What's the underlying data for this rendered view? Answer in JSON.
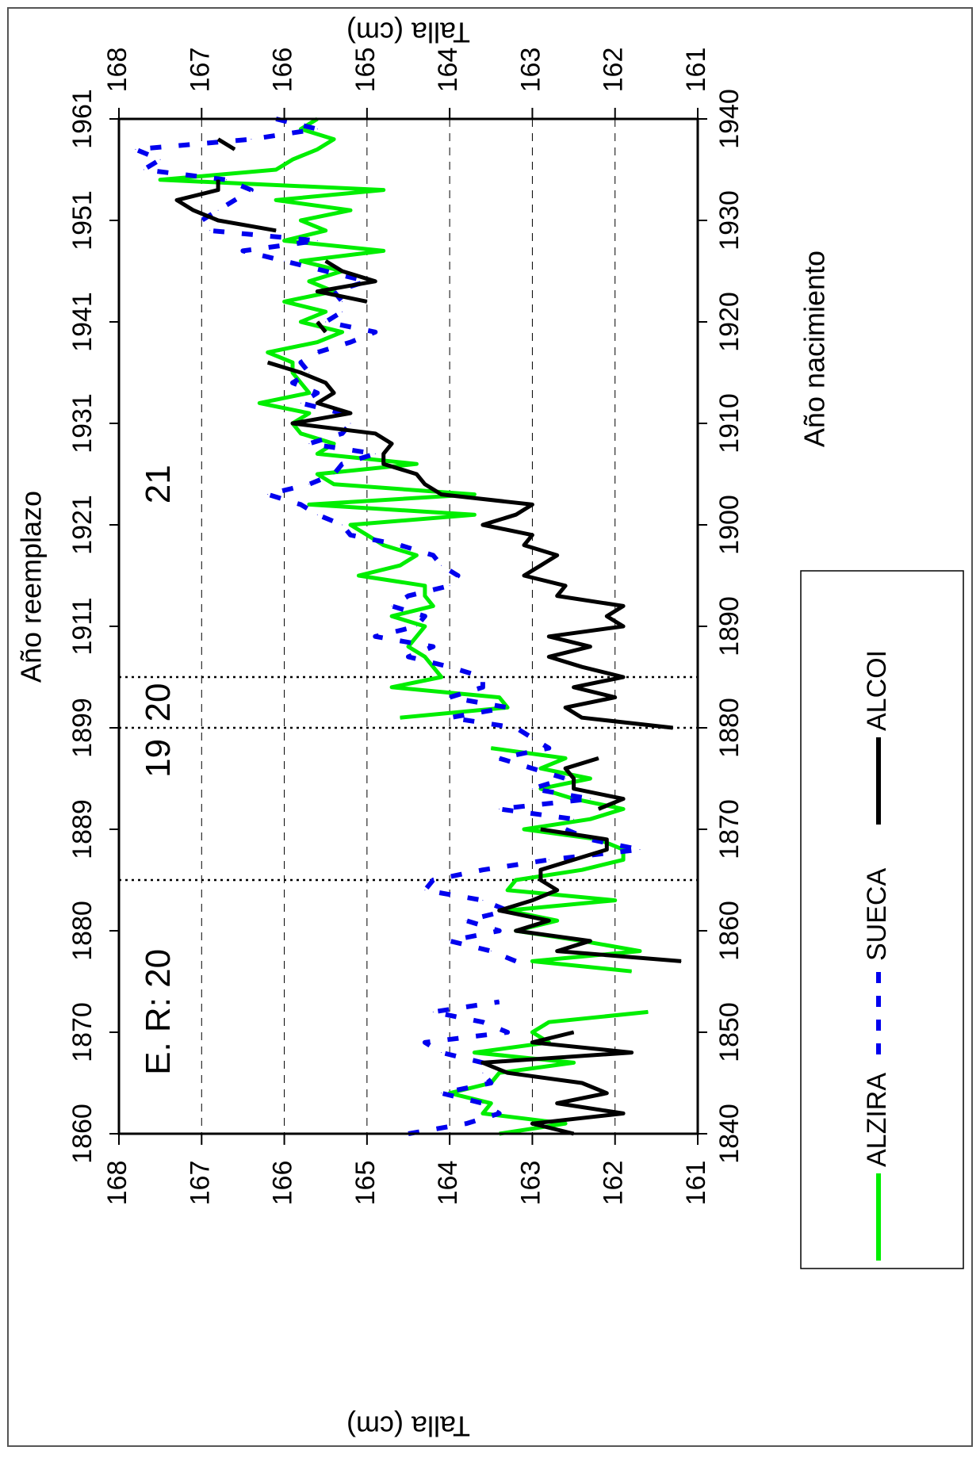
{
  "chart_data": {
    "type": "line",
    "title": "",
    "top_axis_label": "Año reemplazo",
    "bottom_axis_label": "Año nacimiento",
    "left_axis_label": "Talla (cm)",
    "right_axis_label": "Talla (cm)",
    "top_ticks": [
      "1860",
      "1870",
      "1880",
      "1889",
      "1899",
      "1911",
      "1921",
      "1931",
      "1941",
      "1951",
      "1961"
    ],
    "bottom_ticks": [
      "1840",
      "1850",
      "1860",
      "1870",
      "1880",
      "1890",
      "1900",
      "1910",
      "1920",
      "1930",
      "1940"
    ],
    "left_ticks": [
      "168",
      "167",
      "166",
      "165",
      "164",
      "163",
      "162",
      "161"
    ],
    "right_ticks": [
      "168",
      "167",
      "166",
      "165",
      "164",
      "163",
      "162",
      "161"
    ],
    "xlim": [
      1840,
      1940
    ],
    "ylim": [
      161,
      168
    ],
    "x_unit": "Año nacimiento",
    "grid": true,
    "region_separators": [
      1865,
      1880,
      1885
    ],
    "region_labels": [
      {
        "text": "E. R: 20",
        "x": 1852,
        "y": 167.5
      },
      {
        "text": "19",
        "x": 1877,
        "y": 167.5
      },
      {
        "text": "20",
        "x": 1882.5,
        "y": 167.5
      },
      {
        "text": "21",
        "x": 1904,
        "y": 167.5
      }
    ],
    "legend_position": "bottom",
    "series": [
      {
        "name": "ALZIRA",
        "color": "#00ee00",
        "style": "solid",
        "points": [
          [
            1840,
            163.4
          ],
          [
            1841,
            162.6
          ],
          [
            1842,
            163.6
          ],
          [
            1843,
            163.5
          ],
          [
            1844,
            164.0
          ],
          [
            1845,
            163.5
          ],
          [
            1846,
            163.4
          ],
          [
            1847,
            162.5
          ],
          [
            1848,
            163.7
          ],
          [
            1849,
            162.8
          ],
          [
            1850,
            163.0
          ],
          [
            1851,
            162.8
          ],
          [
            1852,
            161.6
          ],
          [
            1856,
            161.8
          ],
          [
            1857,
            163.0
          ],
          [
            1858,
            161.7
          ],
          [
            1859,
            162.4
          ],
          [
            1860,
            163.2
          ],
          [
            1861,
            162.7
          ],
          [
            1862,
            163.3
          ],
          [
            1863,
            162.0
          ],
          [
            1864,
            163.3
          ],
          [
            1865,
            163.2
          ],
          [
            1866,
            162.4
          ],
          [
            1867,
            161.9
          ],
          [
            1868,
            161.9
          ],
          [
            1869,
            162.2
          ],
          [
            1870,
            163.1
          ],
          [
            1871,
            162.3
          ],
          [
            1872,
            161.9
          ],
          [
            1873,
            162.5
          ],
          [
            1874,
            162.9
          ],
          [
            1875,
            162.3
          ],
          [
            1876,
            162.9
          ],
          [
            1877,
            162.6
          ],
          [
            1878,
            163.5
          ],
          [
            1881,
            164.6
          ],
          [
            1882,
            163.3
          ],
          [
            1883,
            163.4
          ],
          [
            1884,
            164.7
          ],
          [
            1885,
            164.1
          ],
          [
            1886,
            164.2
          ],
          [
            1887,
            164.3
          ],
          [
            1888,
            164.5
          ],
          [
            1889,
            164.4
          ],
          [
            1890,
            164.3
          ],
          [
            1891,
            164.7
          ],
          [
            1892,
            164.2
          ],
          [
            1893,
            164.3
          ],
          [
            1894,
            164.3
          ],
          [
            1895,
            165.1
          ],
          [
            1896,
            164.6
          ],
          [
            1897,
            164.4
          ],
          [
            1898,
            164.8
          ],
          [
            1899,
            165.0
          ],
          [
            1900,
            165.2
          ],
          [
            1901,
            163.7
          ],
          [
            1902,
            165.7
          ],
          [
            1903,
            163.7
          ],
          [
            1904,
            165.4
          ],
          [
            1905,
            165.6
          ],
          [
            1906,
            164.4
          ],
          [
            1907,
            165.6
          ],
          [
            1908,
            165.4
          ],
          [
            1909,
            165.8
          ],
          [
            1910,
            165.9
          ],
          [
            1911,
            165.7
          ],
          [
            1912,
            166.3
          ],
          [
            1913,
            165.7
          ],
          [
            1914,
            165.8
          ],
          [
            1915,
            165.9
          ],
          [
            1916,
            165.9
          ],
          [
            1917,
            166.2
          ],
          [
            1918,
            165.6
          ],
          [
            1919,
            165.3
          ],
          [
            1920,
            165.8
          ],
          [
            1921,
            165.5
          ],
          [
            1922,
            166.0
          ],
          [
            1923,
            165.4
          ],
          [
            1924,
            165.7
          ],
          [
            1925,
            165.3
          ],
          [
            1926,
            165.8
          ],
          [
            1927,
            164.8
          ],
          [
            1928,
            166.0
          ],
          [
            1929,
            165.5
          ],
          [
            1930,
            165.8
          ],
          [
            1931,
            165.2
          ],
          [
            1932,
            166.1
          ],
          [
            1933,
            164.8
          ],
          [
            1934,
            167.5
          ],
          [
            1935,
            166.1
          ],
          [
            1936,
            165.9
          ],
          [
            1937,
            165.6
          ],
          [
            1938,
            165.4
          ],
          [
            1939,
            165.8
          ],
          [
            1940,
            165.6
          ]
        ]
      },
      {
        "name": "SUECA",
        "color": "#0000ee",
        "style": "dashed",
        "points": [
          [
            1840,
            164.5
          ],
          [
            1841,
            163.8
          ],
          [
            1842,
            163.4
          ],
          [
            1843,
            163.6
          ],
          [
            1844,
            164.1
          ],
          [
            1845,
            163.5
          ],
          [
            1846,
            163.6
          ],
          [
            1847,
            163.6
          ],
          [
            1848,
            164.1
          ],
          [
            1849,
            164.3
          ],
          [
            1850,
            163.3
          ],
          [
            1851,
            163.6
          ],
          [
            1852,
            164.2
          ],
          [
            1853,
            163.4
          ],
          [
            1857,
            163.2
          ],
          [
            1858,
            163.5
          ],
          [
            1859,
            164.0
          ],
          [
            1860,
            163.4
          ],
          [
            1861,
            163.8
          ],
          [
            1862,
            163.3
          ],
          [
            1863,
            163.6
          ],
          [
            1864,
            164.3
          ],
          [
            1865,
            164.2
          ],
          [
            1866,
            163.6
          ],
          [
            1867,
            162.8
          ],
          [
            1868,
            161.7
          ],
          [
            1869,
            162.3
          ],
          [
            1870,
            162.6
          ],
          [
            1871,
            162.5
          ],
          [
            1872,
            163.4
          ],
          [
            1873,
            162.3
          ],
          [
            1874,
            163.0
          ],
          [
            1875,
            162.6
          ],
          [
            1876,
            163.0
          ],
          [
            1877,
            163.4
          ],
          [
            1878,
            162.8
          ],
          [
            1879,
            163.0
          ],
          [
            1880,
            163.2
          ],
          [
            1881,
            164.0
          ],
          [
            1882,
            163.3
          ],
          [
            1883,
            164.0
          ],
          [
            1884,
            163.6
          ],
          [
            1885,
            163.6
          ],
          [
            1886,
            164.0
          ],
          [
            1887,
            164.5
          ],
          [
            1888,
            164.2
          ],
          [
            1889,
            164.9
          ],
          [
            1890,
            164.4
          ],
          [
            1891,
            164.3
          ],
          [
            1892,
            164.7
          ],
          [
            1893,
            164.5
          ],
          [
            1894,
            164.0
          ],
          [
            1895,
            163.9
          ],
          [
            1896,
            164.1
          ],
          [
            1897,
            164.2
          ],
          [
            1898,
            164.6
          ],
          [
            1899,
            165.2
          ],
          [
            1900,
            165.3
          ],
          [
            1901,
            165.6
          ],
          [
            1902,
            165.8
          ],
          [
            1903,
            166.2
          ],
          [
            1904,
            165.7
          ],
          [
            1905,
            165.4
          ],
          [
            1906,
            165.3
          ],
          [
            1907,
            164.9
          ],
          [
            1908,
            165.7
          ],
          [
            1909,
            165.3
          ],
          [
            1910,
            165.2
          ],
          [
            1911,
            165.3
          ],
          [
            1912,
            165.8
          ],
          [
            1913,
            165.6
          ],
          [
            1914,
            165.9
          ],
          [
            1915,
            165.7
          ],
          [
            1916,
            165.8
          ],
          [
            1917,
            165.6
          ],
          [
            1918,
            165.2
          ],
          [
            1919,
            164.9
          ],
          [
            1920,
            165.5
          ],
          [
            1921,
            165.3
          ],
          [
            1922,
            165.3
          ],
          [
            1923,
            165.4
          ],
          [
            1924,
            165.0
          ],
          [
            1925,
            165.5
          ],
          [
            1926,
            166.0
          ],
          [
            1927,
            166.5
          ],
          [
            1928,
            165.6
          ],
          [
            1929,
            166.9
          ],
          [
            1930,
            167.0
          ],
          [
            1931,
            166.8
          ],
          [
            1932,
            166.6
          ],
          [
            1933,
            166.4
          ],
          [
            1934,
            166.7
          ],
          [
            1935,
            167.7
          ],
          [
            1936,
            167.5
          ],
          [
            1937,
            167.8
          ],
          [
            1938,
            166.4
          ],
          [
            1939,
            165.6
          ],
          [
            1940,
            166.1
          ]
        ]
      },
      {
        "name": "ALCOI",
        "color": "#000000",
        "style": "solid",
        "points": [
          [
            1840,
            162.5
          ],
          [
            1841,
            163.0
          ],
          [
            1842,
            161.9
          ],
          [
            1843,
            162.7
          ],
          [
            1844,
            162.1
          ],
          [
            1845,
            162.4
          ],
          [
            1846,
            163.3
          ],
          [
            1847,
            163.6
          ],
          [
            1848,
            161.8
          ],
          [
            1849,
            163.0
          ],
          [
            1850,
            162.5
          ],
          [
            1857,
            161.2
          ],
          [
            1858,
            162.7
          ],
          [
            1859,
            162.3
          ],
          [
            1860,
            163.2
          ],
          [
            1861,
            162.8
          ],
          [
            1862,
            163.4
          ],
          [
            1863,
            163.0
          ],
          [
            1864,
            162.7
          ],
          [
            1865,
            162.9
          ],
          [
            1866,
            162.9
          ],
          [
            1867,
            162.5
          ],
          [
            1868,
            162.1
          ],
          [
            1869,
            162.1
          ],
          [
            1870,
            162.9
          ],
          [
            1872,
            162.2
          ],
          [
            1873,
            161.9
          ],
          [
            1874,
            162.5
          ],
          [
            1875,
            162.5
          ],
          [
            1876,
            162.6
          ],
          [
            1877,
            162.2
          ],
          [
            1880,
            161.3
          ],
          [
            1881,
            162.4
          ],
          [
            1882,
            162.6
          ],
          [
            1883,
            162.0
          ],
          [
            1884,
            162.5
          ],
          [
            1885,
            161.9
          ],
          [
            1886,
            162.4
          ],
          [
            1887,
            162.8
          ],
          [
            1888,
            162.3
          ],
          [
            1889,
            162.8
          ],
          [
            1890,
            161.9
          ],
          [
            1891,
            162.1
          ],
          [
            1892,
            161.9
          ],
          [
            1893,
            162.7
          ],
          [
            1894,
            162.6
          ],
          [
            1895,
            163.1
          ],
          [
            1896,
            162.9
          ],
          [
            1897,
            162.7
          ],
          [
            1898,
            163.1
          ],
          [
            1899,
            163.0
          ],
          [
            1900,
            163.6
          ],
          [
            1901,
            163.2
          ],
          [
            1902,
            163.0
          ],
          [
            1903,
            164.1
          ],
          [
            1904,
            164.3
          ],
          [
            1905,
            164.4
          ],
          [
            1906,
            164.8
          ],
          [
            1907,
            164.8
          ],
          [
            1908,
            164.7
          ],
          [
            1909,
            164.9
          ],
          [
            1910,
            165.9
          ],
          [
            1911,
            165.2
          ],
          [
            1912,
            165.6
          ],
          [
            1913,
            165.4
          ],
          [
            1914,
            165.5
          ],
          [
            1915,
            165.8
          ],
          [
            1916,
            166.2
          ],
          [
            1919,
            165.5
          ],
          [
            1920,
            165.6
          ],
          [
            1922,
            165.0
          ],
          [
            1923,
            165.6
          ],
          [
            1924,
            164.9
          ],
          [
            1925,
            165.3
          ],
          [
            1926,
            165.5
          ],
          [
            1929,
            166.1
          ],
          [
            1930,
            166.8
          ],
          [
            1931,
            167.1
          ],
          [
            1932,
            167.3
          ],
          [
            1933,
            166.8
          ],
          [
            1934,
            166.8
          ],
          [
            1937,
            166.6
          ],
          [
            1938,
            166.8
          ]
        ]
      }
    ]
  }
}
